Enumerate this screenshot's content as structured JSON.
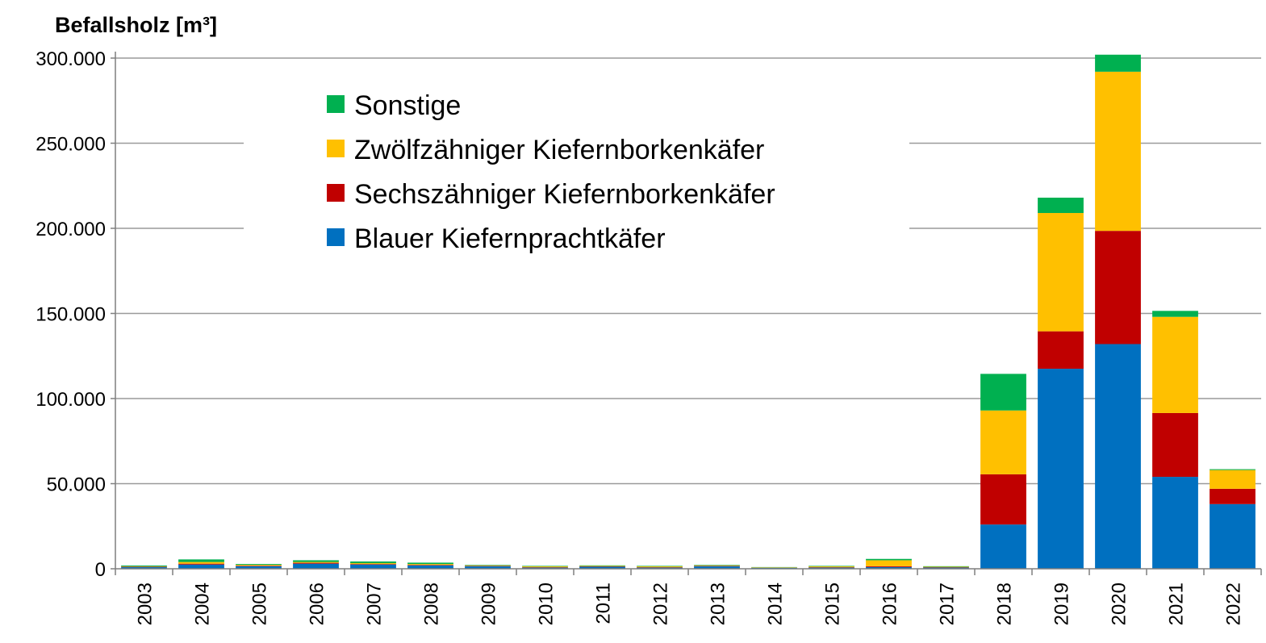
{
  "chart_data": {
    "type": "bar",
    "stacked": true,
    "title": "",
    "ylabel": "Befallsholz [m³]",
    "xlabel": "",
    "ylim": [
      0,
      300000
    ],
    "yticks": [
      0,
      50000,
      100000,
      150000,
      200000,
      250000,
      300000
    ],
    "ytick_labels": [
      "0",
      "50.000",
      "100.000",
      "150.000",
      "200.000",
      "250.000",
      "300.000"
    ],
    "grid": true,
    "legend_position": "top-left",
    "categories": [
      "2003",
      "2004",
      "2005",
      "2006",
      "2007",
      "2008",
      "2009",
      "2010",
      "2011",
      "2012",
      "2013",
      "2014",
      "2015",
      "2016",
      "2017",
      "2018",
      "2019",
      "2020",
      "2021",
      "2022"
    ],
    "series": [
      {
        "name": "Blauer Kiefernprachtkäfer",
        "color": "#0070C0",
        "values": [
          1000,
          2500,
          1500,
          3000,
          2500,
          2000,
          1500,
          700,
          1200,
          700,
          1500,
          500,
          700,
          1000,
          700,
          26000,
          117500,
          132000,
          54000,
          38000
        ]
      },
      {
        "name": "Sechszähniger Kiefernborkenkäfer",
        "color": "#C00000",
        "values": [
          200,
          500,
          300,
          500,
          300,
          300,
          200,
          200,
          200,
          200,
          200,
          100,
          200,
          500,
          200,
          29500,
          22000,
          66500,
          37500,
          9000
        ]
      },
      {
        "name": "Zwölfzähniger Kiefernborkenkäfer",
        "color": "#FFC000",
        "values": [
          200,
          1000,
          500,
          500,
          500,
          500,
          300,
          500,
          300,
          500,
          300,
          200,
          500,
          3500,
          300,
          37500,
          69500,
          93500,
          56500,
          11000
        ]
      },
      {
        "name": "Sonstige",
        "color": "#00B050",
        "values": [
          500,
          1500,
          500,
          1000,
          1000,
          800,
          300,
          300,
          300,
          300,
          300,
          200,
          300,
          800,
          300,
          21500,
          9000,
          10000,
          3500,
          500
        ]
      }
    ],
    "legend_order": [
      "Sonstige",
      "Zwölfzähniger Kiefernborkenkäfer",
      "Sechszähniger Kiefernborkenkäfer",
      "Blauer Kiefernprachtkäfer"
    ]
  }
}
